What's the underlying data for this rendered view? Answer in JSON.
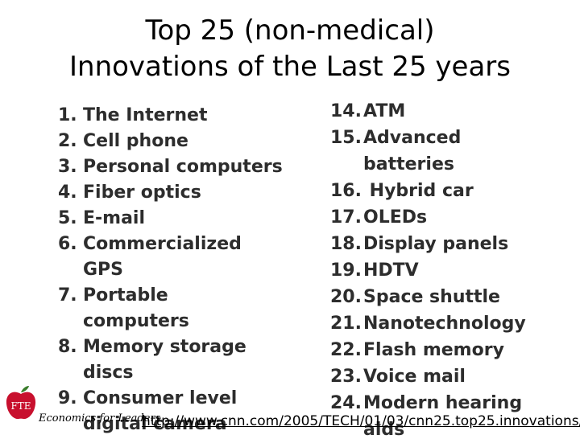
{
  "title": {
    "line1": "Top 25 (non-medical)",
    "line2": "Innovations of the Last 25 years"
  },
  "left_list": [
    {
      "num": "1.",
      "lines": [
        "The Internet"
      ]
    },
    {
      "num": "2.",
      "lines": [
        "Cell phone"
      ]
    },
    {
      "num": "3.",
      "lines": [
        "Personal computers"
      ]
    },
    {
      "num": "4.",
      "lines": [
        "Fiber optics"
      ]
    },
    {
      "num": "5.",
      "lines": [
        "E-mail"
      ]
    },
    {
      "num": "6.",
      "lines": [
        "Commercialized",
        "GPS"
      ]
    },
    {
      "num": "7.",
      "lines": [
        "Portable",
        "computers"
      ]
    },
    {
      "num": "8.",
      "lines": [
        "Memory storage",
        "discs"
      ]
    },
    {
      "num": "9.",
      "lines": [
        "Consumer level",
        "digital camera"
      ]
    }
  ],
  "right_list": [
    {
      "num": "14.",
      "lines": [
        "ATM"
      ]
    },
    {
      "num": "15.",
      "lines": [
        "Advanced",
        "batteries"
      ]
    },
    {
      "num": "16.",
      "lines": [
        " Hybrid car"
      ]
    },
    {
      "num": "17.",
      "lines": [
        "OLEDs"
      ]
    },
    {
      "num": "18.",
      "lines": [
        "Display panels"
      ]
    },
    {
      "num": "19.",
      "lines": [
        "HDTV"
      ]
    },
    {
      "num": "20.",
      "lines": [
        "Space shuttle"
      ]
    },
    {
      "num": "21.",
      "lines": [
        "Nanotechnology"
      ]
    },
    {
      "num": "22.",
      "lines": [
        "Flash memory"
      ]
    },
    {
      "num": "23.",
      "lines": [
        "Voice mail"
      ]
    },
    {
      "num": "24.",
      "lines": [
        "Modern hearing",
        "aids"
      ]
    }
  ],
  "footer": {
    "logo_text": "FTE",
    "org_text": "Economics for Leaders",
    "url": "http://www.cnn.com/2005/TECH/01/03/cnn25.top25.innovations/"
  },
  "colors": {
    "list_text": "#2d2d2d",
    "logo_red": "#c8102e",
    "logo_leaf": "#3a7d2c"
  }
}
